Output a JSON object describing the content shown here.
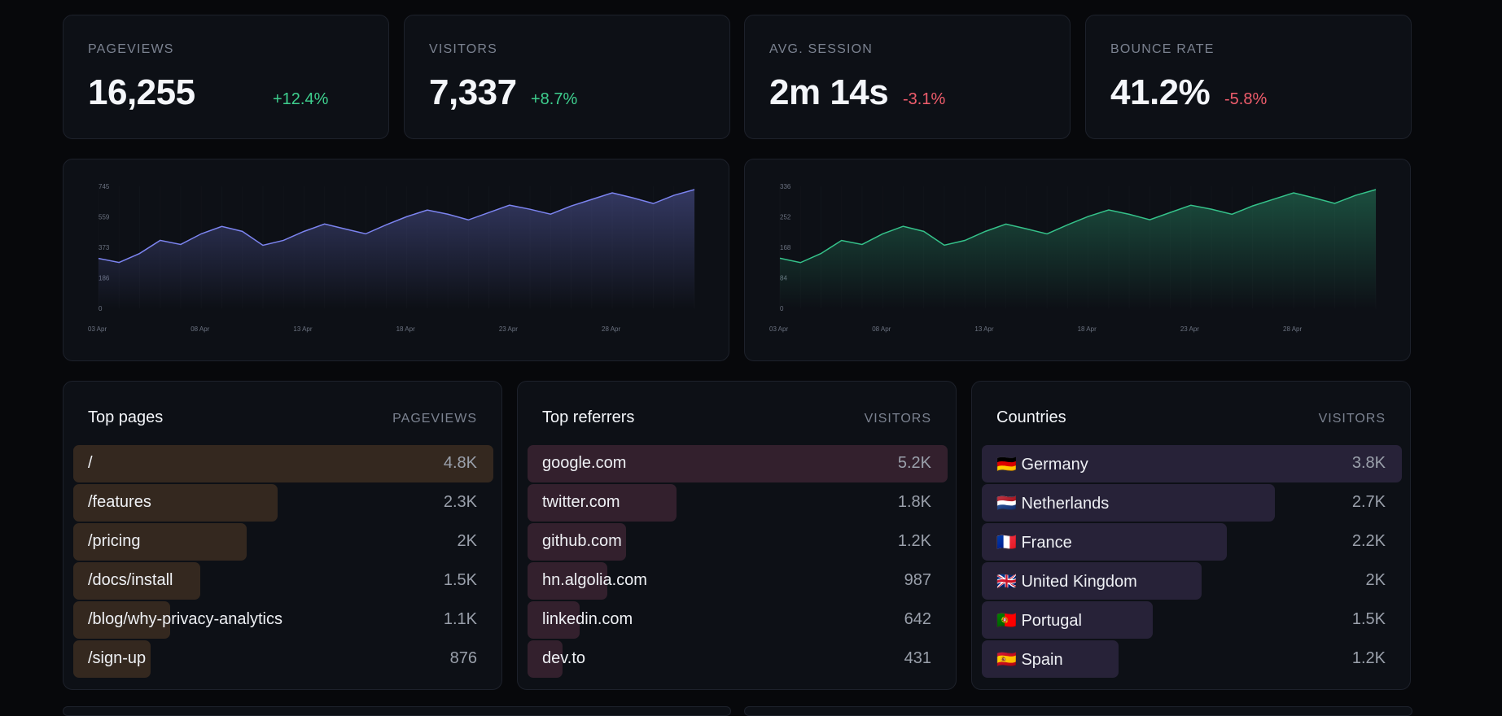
{
  "stats": [
    {
      "label": "PAGEVIEWS",
      "value": "16,255",
      "delta": "+12.4%",
      "trend": "up"
    },
    {
      "label": "VISITORS",
      "value": "7,337",
      "delta": "+8.7%",
      "trend": "up"
    },
    {
      "label": "AVG. SESSION",
      "value": "2m 14s",
      "delta": "-3.1%",
      "trend": "down"
    },
    {
      "label": "BOUNCE RATE",
      "value": "41.2%",
      "delta": "-5.8%",
      "trend": "down"
    }
  ],
  "chart_data": [
    {
      "type": "area",
      "color": "#7c84f0",
      "ylim": [
        0,
        745
      ],
      "yticks": [
        "745",
        "559",
        "373",
        "186",
        "0"
      ],
      "ytick_values": [
        745,
        559,
        373,
        186,
        0
      ],
      "xtick_labels": [
        "03 Apr",
        "08 Apr",
        "13 Apr",
        "18 Apr",
        "23 Apr",
        "28 Apr"
      ],
      "xtick_index": [
        0,
        5,
        10,
        15,
        20,
        25
      ],
      "values": [
        305,
        280,
        335,
        415,
        390,
        455,
        500,
        470,
        385,
        415,
        470,
        515,
        485,
        455,
        510,
        560,
        600,
        575,
        540,
        585,
        630,
        605,
        575,
        625,
        665,
        705,
        675,
        640,
        690,
        725
      ]
    },
    {
      "type": "area",
      "color": "#35c28a",
      "ylim": [
        0,
        336
      ],
      "yticks": [
        "336",
        "252",
        "168",
        "84",
        "0"
      ],
      "ytick_values": [
        336,
        252,
        168,
        84,
        0
      ],
      "xtick_labels": [
        "03 Apr",
        "08 Apr",
        "13 Apr",
        "18 Apr",
        "23 Apr",
        "28 Apr"
      ],
      "xtick_index": [
        0,
        5,
        10,
        15,
        20,
        25
      ],
      "values": [
        138,
        126,
        151,
        187,
        176,
        205,
        226,
        212,
        174,
        187,
        212,
        232,
        219,
        205,
        230,
        253,
        271,
        259,
        244,
        264,
        284,
        273,
        259,
        282,
        300,
        318,
        304,
        289,
        311,
        327
      ]
    }
  ],
  "lists": [
    {
      "title": "Top pages",
      "column": "PAGEVIEWS",
      "bar_color": "#34281f",
      "rows": [
        {
          "label": "/",
          "value": "4.8K",
          "fraction": 1.0
        },
        {
          "label": "/features",
          "value": "2.3K",
          "fraction": 0.486
        },
        {
          "label": "/pricing",
          "value": "2K",
          "fraction": 0.413
        },
        {
          "label": "/docs/install",
          "value": "1.5K",
          "fraction": 0.302
        },
        {
          "label": "/blog/why-privacy-analytics",
          "value": "1.1K",
          "fraction": 0.231
        },
        {
          "label": "/sign-up",
          "value": "876",
          "fraction": 0.184
        }
      ]
    },
    {
      "title": "Top referrers",
      "column": "VISITORS",
      "bar_color": "#33202d",
      "rows": [
        {
          "label": "google.com",
          "value": "5.2K",
          "fraction": 1.0
        },
        {
          "label": "twitter.com",
          "value": "1.8K",
          "fraction": 0.354
        },
        {
          "label": "github.com",
          "value": "1.2K",
          "fraction": 0.235
        },
        {
          "label": "hn.algolia.com",
          "value": "987",
          "fraction": 0.19
        },
        {
          "label": "linkedin.com",
          "value": "642",
          "fraction": 0.124
        },
        {
          "label": "dev.to",
          "value": "431",
          "fraction": 0.083
        }
      ]
    },
    {
      "title": "Countries",
      "column": "VISITORS",
      "bar_color": "#272238",
      "rows": [
        {
          "label": "🇩🇪 Germany",
          "value": "3.8K",
          "fraction": 1.0
        },
        {
          "label": "🇳🇱 Netherlands",
          "value": "2.7K",
          "fraction": 0.698
        },
        {
          "label": "🇫🇷 France",
          "value": "2.2K",
          "fraction": 0.583
        },
        {
          "label": "🇬🇧 United Kingdom",
          "value": "2K",
          "fraction": 0.524
        },
        {
          "label": "🇵🇹 Portugal",
          "value": "1.5K",
          "fraction": 0.407
        },
        {
          "label": "🇪🇸 Spain",
          "value": "1.2K",
          "fraction": 0.325
        }
      ]
    }
  ]
}
